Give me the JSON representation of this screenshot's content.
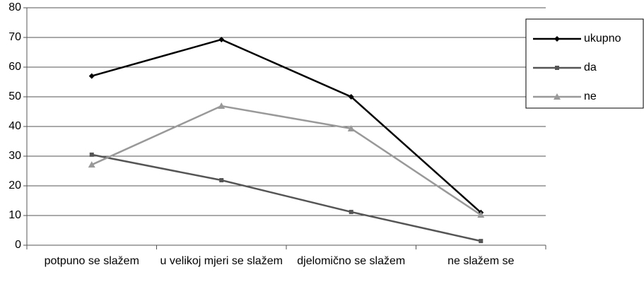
{
  "chart_data": {
    "type": "line",
    "categories": [
      "potpuno se slažem",
      "u velikoj mjeri se slažem",
      "djelomično se slažem",
      "ne slažem se"
    ],
    "series": [
      {
        "name": "ukupno",
        "color": "#000000",
        "marker": "diamond",
        "values": [
          57,
          69.3,
          50,
          11
        ]
      },
      {
        "name": "da",
        "color": "#555555",
        "marker": "square",
        "values": [
          30.5,
          21.9,
          11.2,
          1.4
        ]
      },
      {
        "name": "ne",
        "color": "#999999",
        "marker": "triangle",
        "values": [
          27.1,
          46.9,
          39.3,
          10.2
        ]
      }
    ],
    "ylim": [
      0,
      80
    ],
    "yticks": [
      0,
      10,
      20,
      30,
      40,
      50,
      60,
      70,
      80
    ],
    "grid": true,
    "legend": "right"
  }
}
